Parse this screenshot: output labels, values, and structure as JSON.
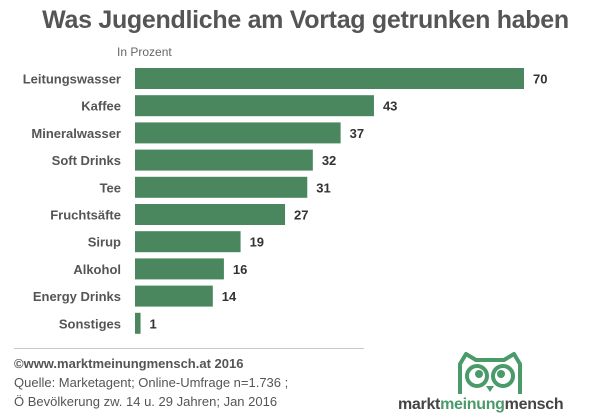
{
  "title": "Was Jugendliche am Vortag getrunken haben",
  "chart_data": {
    "type": "bar",
    "orientation": "horizontal",
    "title": "Was Jugendliche am Vortag getrunken haben",
    "subtitle": "In Prozent",
    "xlabel": "",
    "ylabel": "",
    "xlim": [
      0,
      70
    ],
    "grid": false,
    "bar_color": "#4b875e",
    "categories": [
      "Leitungswasser",
      "Kaffee",
      "Mineralwasser",
      "Soft Drinks",
      "Tee",
      "Fruchtsäfte",
      "Sirup",
      "Alkohol",
      "Energy Drinks",
      "Sonstiges"
    ],
    "values": [
      70,
      43,
      37,
      32,
      31,
      27,
      19,
      16,
      14,
      1
    ],
    "value_labels": [
      "70",
      "43",
      "37",
      "32",
      "31",
      "27",
      "19",
      "16",
      "14",
      "1"
    ]
  },
  "footer": {
    "copyright": "©www.marktmeinungmensch.at 2016",
    "source_line1": "Quelle: Marketagent;  Online-Umfrage n=1.736 ;",
    "source_line2": "Ö Bevölkerung  zw. 14 u. 29 Jahren; Jan 2016"
  },
  "logo": {
    "part1": "markt",
    "part2": "meinung",
    "part3": "mensch",
    "icon": "owl-icon",
    "green": "#4a9a6a",
    "dark": "#444444"
  }
}
